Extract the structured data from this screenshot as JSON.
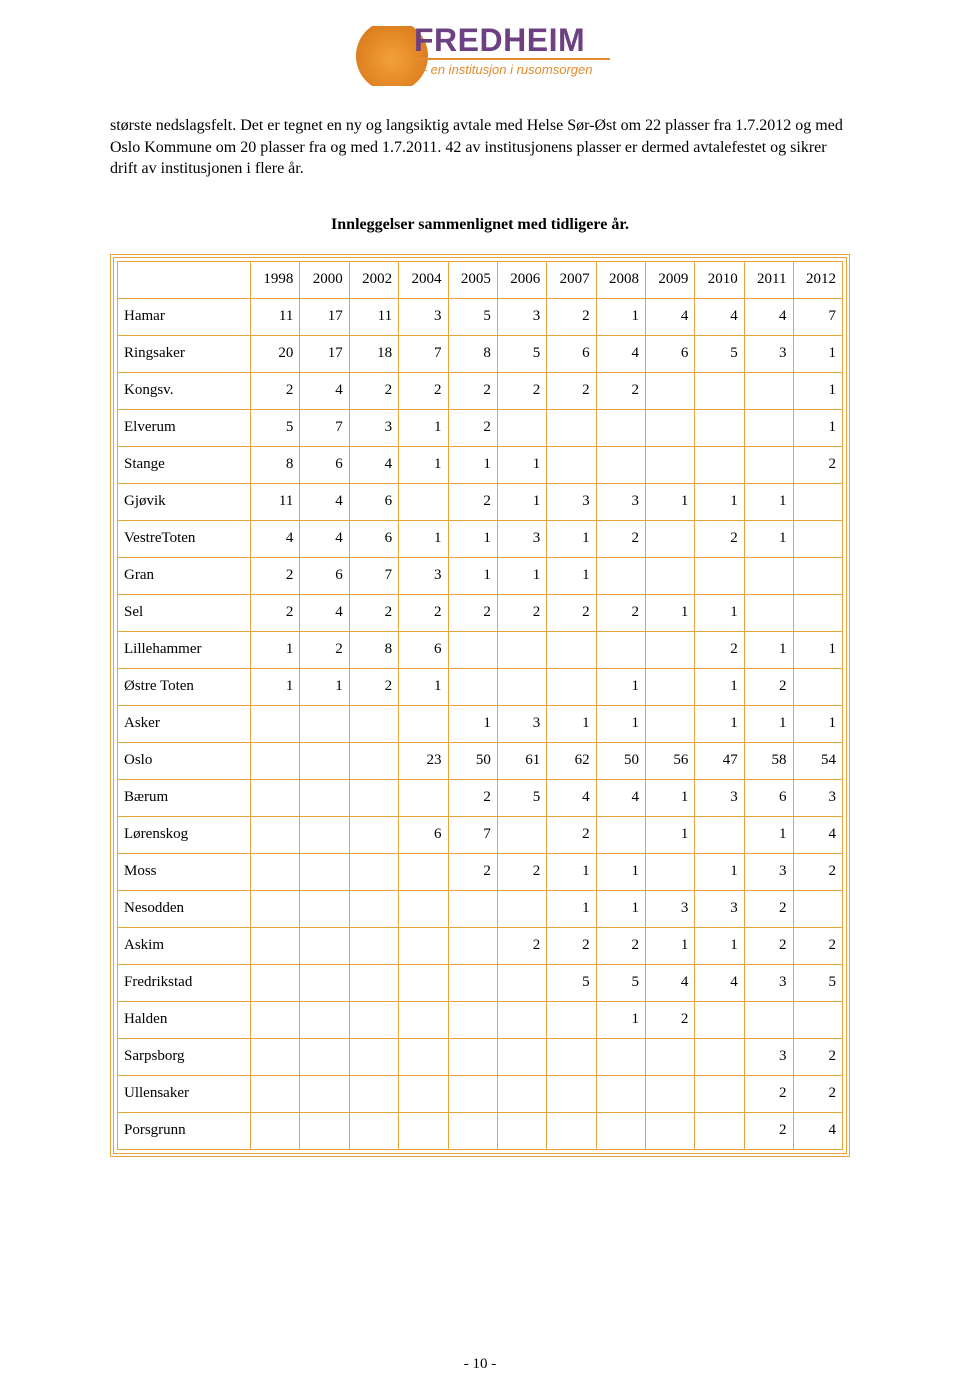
{
  "logo": {
    "word": "FREDHEIM",
    "tagline": "— en institusjon i rusomsorgen",
    "word_color": "#6d4082",
    "accent_color": "#e38b2e"
  },
  "paragraph": "største nedslagsfelt. Det er tegnet en ny og langsiktig avtale med Helse Sør-Øst om 22 plasser fra 1.7.2012 og med Oslo Kommune om 20 plasser fra og med 1.7.2011. 42 av institusjonens plasser er dermed avtalefestet og sikrer drift av institusjonen i flere år.",
  "table_title": "Innleggelser sammenlignet med tidligere år.",
  "table": {
    "border_color": "#e8a33d",
    "columns": [
      "",
      "1998",
      "2000",
      "2002",
      "2004",
      "2005",
      "2006",
      "2007",
      "2008",
      "2009",
      "2010",
      "2011",
      "2012"
    ],
    "rows": [
      {
        "label": "Hamar",
        "cells": [
          "11",
          "17",
          "11",
          "3",
          "5",
          "3",
          "2",
          "1",
          "4",
          "4",
          "4",
          "7"
        ]
      },
      {
        "label": "Ringsaker",
        "cells": [
          "20",
          "17",
          "18",
          "7",
          "8",
          "5",
          "6",
          "4",
          "6",
          "5",
          "3",
          "1"
        ]
      },
      {
        "label": "Kongsv.",
        "cells": [
          "2",
          "4",
          "2",
          "2",
          "2",
          "2",
          "2",
          "2",
          "",
          "",
          "",
          "1"
        ]
      },
      {
        "label": "Elverum",
        "cells": [
          "5",
          "7",
          "3",
          "1",
          "2",
          "",
          "",
          "",
          "",
          "",
          "",
          "1"
        ]
      },
      {
        "label": "Stange",
        "cells": [
          "8",
          "6",
          "4",
          "1",
          "1",
          "1",
          "",
          "",
          "",
          "",
          "",
          "2"
        ]
      },
      {
        "label": "Gjøvik",
        "cells": [
          "11",
          "4",
          "6",
          "",
          "2",
          "1",
          "3",
          "3",
          "1",
          "1",
          "1",
          ""
        ]
      },
      {
        "label": "VestreToten",
        "cells": [
          "4",
          "4",
          "6",
          "1",
          "1",
          "3",
          "1",
          "2",
          "",
          "2",
          "1",
          ""
        ]
      },
      {
        "label": "Gran",
        "cells": [
          "2",
          "6",
          "7",
          "3",
          "1",
          "1",
          "1",
          "",
          "",
          "",
          "",
          ""
        ]
      },
      {
        "label": "Sel",
        "cells": [
          "2",
          "4",
          "2",
          "2",
          "2",
          "2",
          "2",
          "2",
          "1",
          "1",
          "",
          ""
        ]
      },
      {
        "label": "Lillehammer",
        "cells": [
          "1",
          "2",
          "8",
          "6",
          "",
          "",
          "",
          "",
          "",
          "2",
          "1",
          "1"
        ]
      },
      {
        "label": "Østre Toten",
        "cells": [
          "1",
          "1",
          "2",
          "1",
          "",
          "",
          "",
          "1",
          "",
          "1",
          "2",
          ""
        ]
      },
      {
        "label": "Asker",
        "cells": [
          "",
          "",
          "",
          "",
          "1",
          "3",
          "1",
          "1",
          "",
          "1",
          "1",
          "1"
        ]
      },
      {
        "label": "Oslo",
        "cells": [
          "",
          "",
          "",
          "23",
          "50",
          "61",
          "62",
          "50",
          "56",
          "47",
          "58",
          "54"
        ]
      },
      {
        "label": "Bærum",
        "cells": [
          "",
          "",
          "",
          "",
          "2",
          "5",
          "4",
          "4",
          "1",
          "3",
          "6",
          "3"
        ]
      },
      {
        "label": "Lørenskog",
        "cells": [
          "",
          "",
          "",
          "6",
          "7",
          "",
          "2",
          "",
          "1",
          "",
          "1",
          "4"
        ]
      },
      {
        "label": "Moss",
        "cells": [
          "",
          "",
          "",
          "",
          "2",
          "2",
          "1",
          "1",
          "",
          "1",
          "3",
          "2"
        ]
      },
      {
        "label": "Nesodden",
        "cells": [
          "",
          "",
          "",
          "",
          "",
          "",
          "1",
          "1",
          "3",
          "3",
          "2",
          ""
        ]
      },
      {
        "label": "Askim",
        "cells": [
          "",
          "",
          "",
          "",
          "",
          "2",
          "2",
          "2",
          "1",
          "1",
          "2",
          "2"
        ]
      },
      {
        "label": "Fredrikstad",
        "cells": [
          "",
          "",
          "",
          "",
          "",
          "",
          "5",
          "5",
          "4",
          "4",
          "3",
          "5"
        ]
      },
      {
        "label": "Halden",
        "cells": [
          "",
          "",
          "",
          "",
          "",
          "",
          "",
          "1",
          "2",
          "",
          "",
          ""
        ]
      },
      {
        "label": "Sarpsborg",
        "cells": [
          "",
          "",
          "",
          "",
          "",
          "",
          "",
          "",
          "",
          "",
          "3",
          "2"
        ]
      },
      {
        "label": "Ullensaker",
        "cells": [
          "",
          "",
          "",
          "",
          "",
          "",
          "",
          "",
          "",
          "",
          "2",
          "2"
        ]
      },
      {
        "label": "Porsgrunn",
        "cells": [
          "",
          "",
          "",
          "",
          "",
          "",
          "",
          "",
          "",
          "",
          "2",
          "4"
        ]
      }
    ]
  },
  "page_number": "- 10 -"
}
